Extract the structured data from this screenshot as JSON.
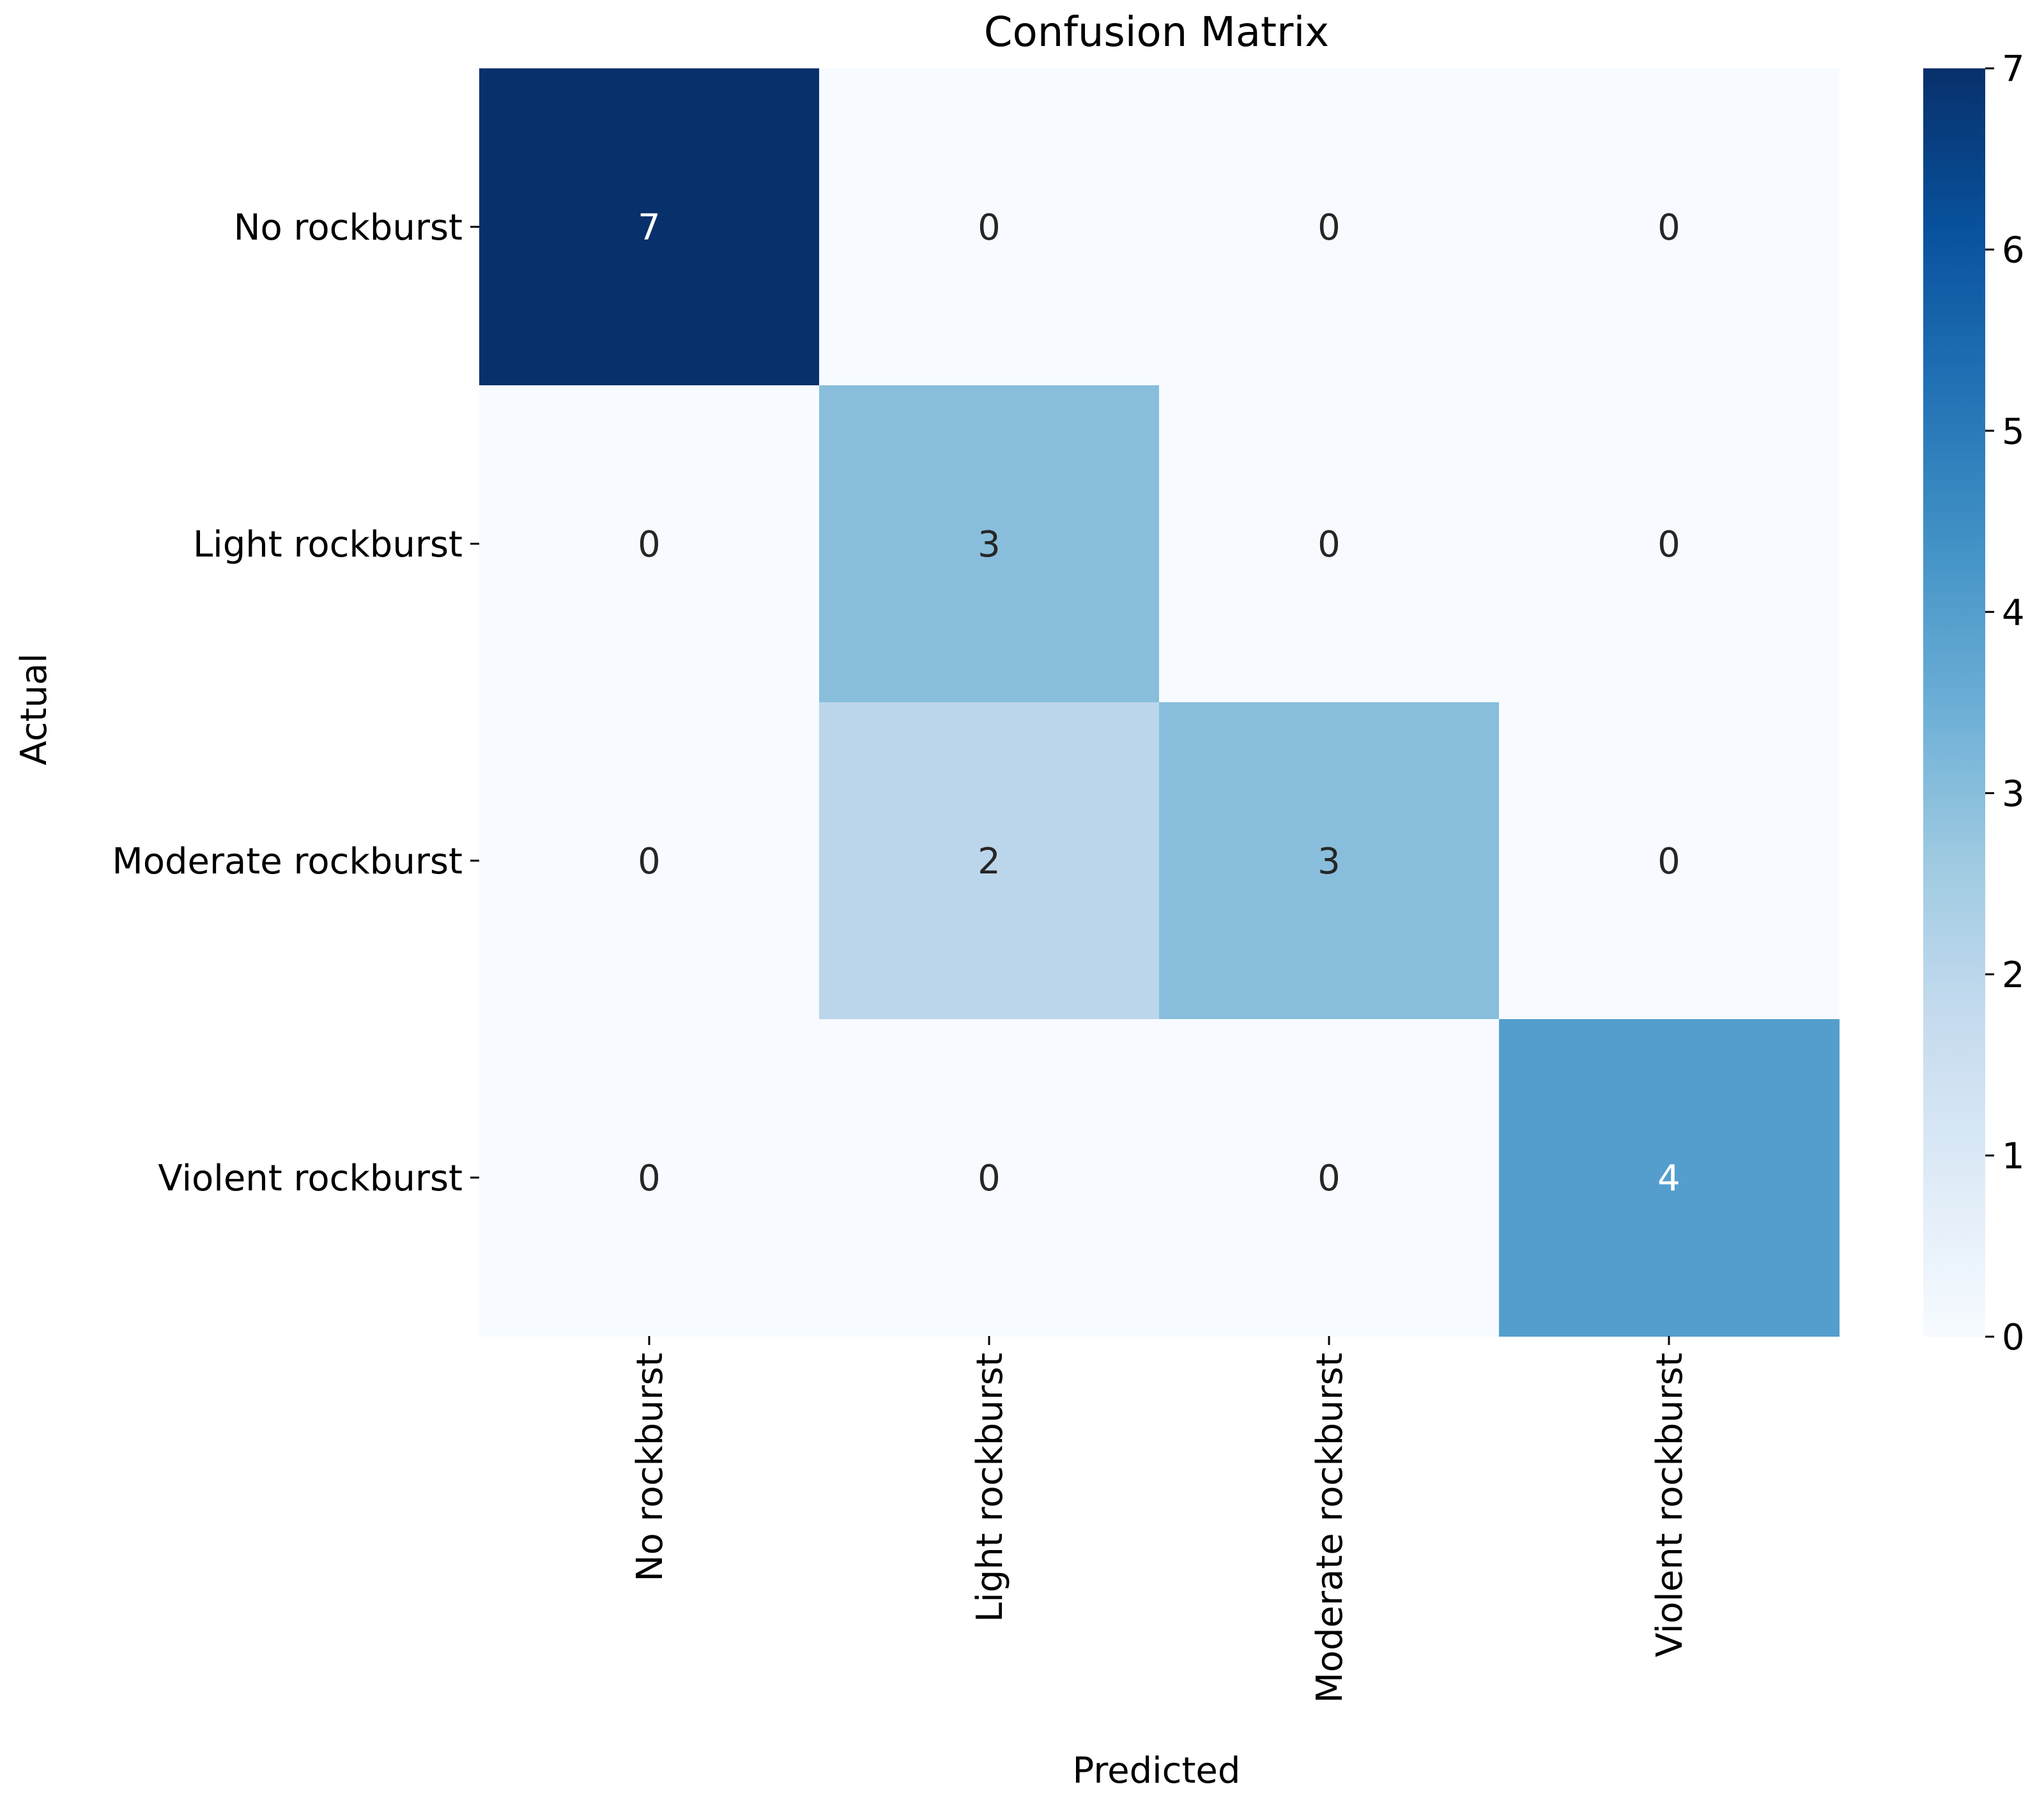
{
  "chart_data": {
    "type": "heatmap",
    "title": "Confusion Matrix",
    "xlabel": "Predicted",
    "ylabel": "Actual",
    "x_categories": [
      "No rockburst",
      "Light rockburst",
      "Moderate rockburst",
      "Violent rockburst"
    ],
    "y_categories": [
      "No rockburst",
      "Light rockburst",
      "Moderate rockburst",
      "Violent rockburst"
    ],
    "values": [
      [
        7,
        0,
        0,
        0
      ],
      [
        0,
        3,
        0,
        0
      ],
      [
        0,
        2,
        3,
        0
      ],
      [
        0,
        0,
        0,
        4
      ]
    ],
    "colormap": "Blues",
    "colorbar": {
      "min": 0,
      "max": 7,
      "ticks": [
        0,
        1,
        2,
        3,
        4,
        5,
        6,
        7
      ]
    },
    "colors": {
      "low": "#f5f9fe",
      "high": "#08306b",
      "text_dark": "#262626",
      "text_light": "#ffffff"
    }
  }
}
